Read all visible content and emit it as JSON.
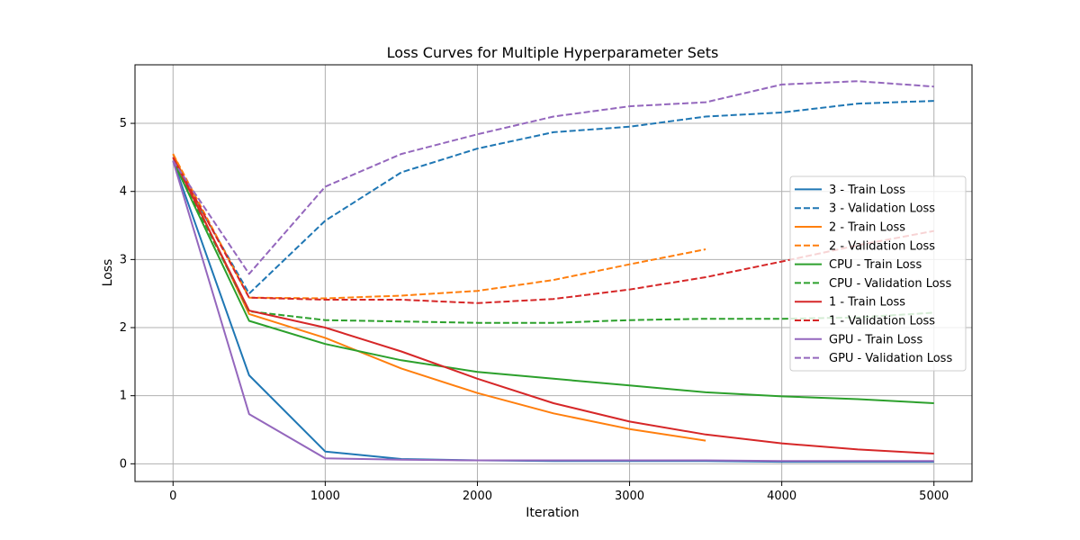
{
  "chart_data": {
    "type": "line",
    "title": "Loss Curves for Multiple Hyperparameter Sets",
    "xlabel": "Iteration",
    "ylabel": "Loss",
    "xlim": [
      -250,
      5250
    ],
    "ylim": [
      -0.26,
      5.86
    ],
    "xticks": [
      0,
      1000,
      2000,
      3000,
      4000,
      5000
    ],
    "yticks": [
      0,
      1,
      2,
      3,
      4,
      5
    ],
    "grid": true,
    "legend_position": "right",
    "series": [
      {
        "name": "3 - Train Loss",
        "color": "#1f77b4",
        "dash": "solid",
        "x": [
          0,
          500,
          1000,
          1500,
          2000,
          2500,
          3000,
          3500,
          4000,
          4500,
          5000
        ],
        "y": [
          4.45,
          1.3,
          0.18,
          0.07,
          0.05,
          0.04,
          0.04,
          0.04,
          0.03,
          0.03,
          0.03
        ]
      },
      {
        "name": "3 - Validation Loss",
        "color": "#1f77b4",
        "dash": "dashed",
        "x": [
          0,
          500,
          1000,
          1500,
          2000,
          2500,
          3000,
          3500,
          4000,
          4500,
          5000
        ],
        "y": [
          4.45,
          2.5,
          3.57,
          4.28,
          4.63,
          4.87,
          4.95,
          5.1,
          5.16,
          5.29,
          5.33
        ]
      },
      {
        "name": "2 - Train Loss",
        "color": "#ff7f0e",
        "dash": "solid",
        "x": [
          0,
          500,
          1000,
          1500,
          2000,
          2500,
          3000,
          3500
        ],
        "y": [
          4.55,
          2.2,
          1.85,
          1.4,
          1.04,
          0.74,
          0.51,
          0.34
        ]
      },
      {
        "name": "2 - Validation Loss",
        "color": "#ff7f0e",
        "dash": "dashed",
        "x": [
          0,
          500,
          1000,
          1500,
          2000,
          2500,
          3000,
          3500
        ],
        "y": [
          4.55,
          2.44,
          2.43,
          2.47,
          2.54,
          2.7,
          2.93,
          3.15
        ]
      },
      {
        "name": "CPU - Train Loss",
        "color": "#2ca02c",
        "dash": "solid",
        "x": [
          0,
          500,
          1000,
          1500,
          2000,
          2500,
          3000,
          3500,
          4000,
          4500,
          5000
        ],
        "y": [
          4.45,
          2.1,
          1.76,
          1.52,
          1.35,
          1.25,
          1.15,
          1.05,
          0.99,
          0.95,
          0.89
        ]
      },
      {
        "name": "CPU - Validation Loss",
        "color": "#2ca02c",
        "dash": "dashed",
        "x": [
          0,
          500,
          1000,
          1500,
          2000,
          2500,
          3000,
          3500,
          4000,
          4500,
          5000
        ],
        "y": [
          4.45,
          2.24,
          2.11,
          2.09,
          2.07,
          2.07,
          2.11,
          2.13,
          2.13,
          2.15,
          2.22
        ]
      },
      {
        "name": "1 - Train Loss",
        "color": "#d62728",
        "dash": "solid",
        "x": [
          0,
          500,
          1000,
          1500,
          2000,
          2500,
          3000,
          3500,
          4000,
          4500,
          5000
        ],
        "y": [
          4.5,
          2.25,
          2.0,
          1.65,
          1.25,
          0.89,
          0.62,
          0.43,
          0.3,
          0.21,
          0.15
        ]
      },
      {
        "name": "1 - Validation Loss",
        "color": "#d62728",
        "dash": "dashed",
        "x": [
          0,
          500,
          1000,
          1500,
          2000,
          2500,
          3000,
          3500,
          4000,
          4500,
          5000
        ],
        "y": [
          4.5,
          2.44,
          2.41,
          2.41,
          2.36,
          2.42,
          2.56,
          2.74,
          2.97,
          3.21,
          3.42
        ]
      },
      {
        "name": "GPU - Train Loss",
        "color": "#9467bd",
        "dash": "solid",
        "x": [
          0,
          500,
          1000,
          1500,
          2000,
          2500,
          3000,
          3500,
          4000,
          4500,
          5000
        ],
        "y": [
          4.45,
          0.73,
          0.08,
          0.06,
          0.05,
          0.05,
          0.05,
          0.05,
          0.04,
          0.04,
          0.04
        ]
      },
      {
        "name": "GPU - Validation Loss",
        "color": "#9467bd",
        "dash": "dashed",
        "x": [
          0,
          500,
          1000,
          1500,
          2000,
          2500,
          3000,
          3500,
          4000,
          4500,
          5000
        ],
        "y": [
          4.45,
          2.79,
          4.07,
          4.55,
          4.84,
          5.1,
          5.25,
          5.31,
          5.57,
          5.62,
          5.54
        ]
      }
    ]
  }
}
